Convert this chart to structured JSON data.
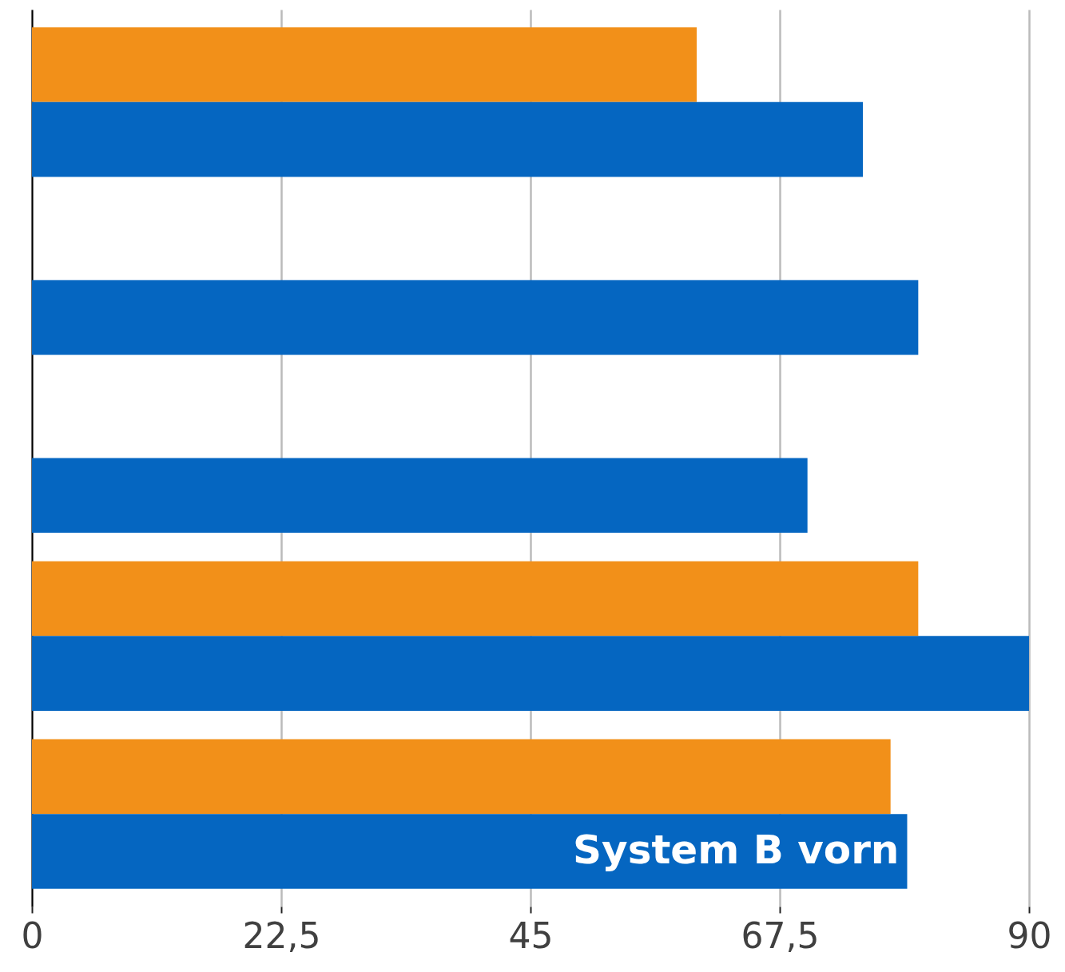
{
  "chart_data": {
    "type": "bar",
    "orientation": "horizontal",
    "categories": [
      null,
      null,
      null,
      null,
      null
    ],
    "series": [
      {
        "color": "#f29019",
        "values": [
          60,
          null,
          null,
          80,
          77.5
        ]
      },
      {
        "color": "#0566c1",
        "values": [
          75,
          80,
          70,
          90,
          79
        ]
      }
    ],
    "xlim": [
      0,
      90
    ],
    "xticks": [
      0,
      {
        "value": 22.5,
        "label": "22,5"
      },
      45,
      {
        "value": 67.5,
        "label": "67,5"
      },
      90
    ],
    "grid": "x",
    "legend": false,
    "tick_labels": "x",
    "annotations": [
      {
        "text": "System B vorn",
        "x": 79
      }
    ]
  }
}
